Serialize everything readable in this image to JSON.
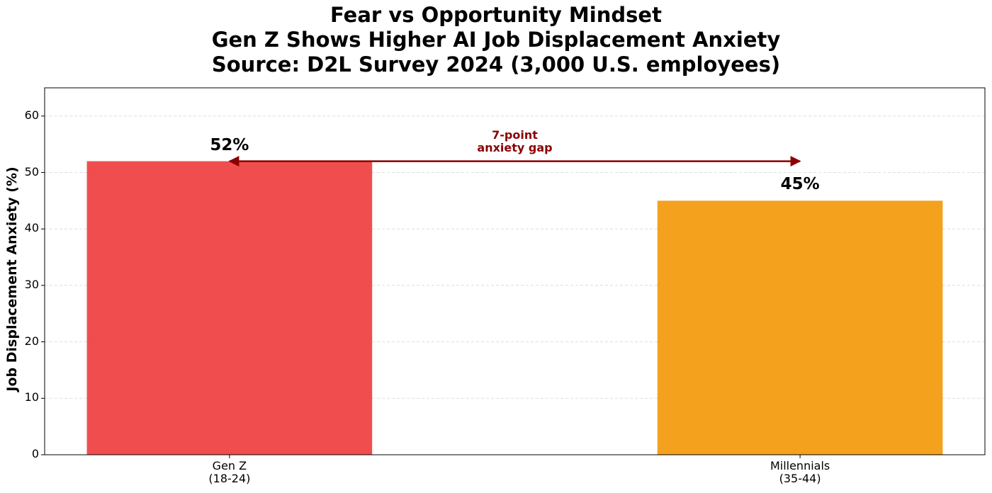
{
  "chart_data": {
    "type": "bar",
    "title": "Fear vs Opportunity Mindset\nGen Z Shows Higher AI Job Displacement Anxiety\nSource: D2L Survey 2024 (3,000 U.S. employees)",
    "ylabel": "Job Displacement Anxiety (%)",
    "categories": [
      "Gen Z\n(18-24)",
      "Millennials\n(35-44)"
    ],
    "values": [
      52,
      45
    ],
    "value_labels": [
      "52%",
      "45%"
    ],
    "colors": [
      "#ef4444",
      "#f39c12"
    ],
    "ylim": [
      0,
      65
    ],
    "yticks": [
      0,
      10,
      20,
      30,
      40,
      50,
      60
    ],
    "grid": true,
    "annotation": "7-point\nanxiety gap",
    "annotation_color": "#8b0000"
  }
}
